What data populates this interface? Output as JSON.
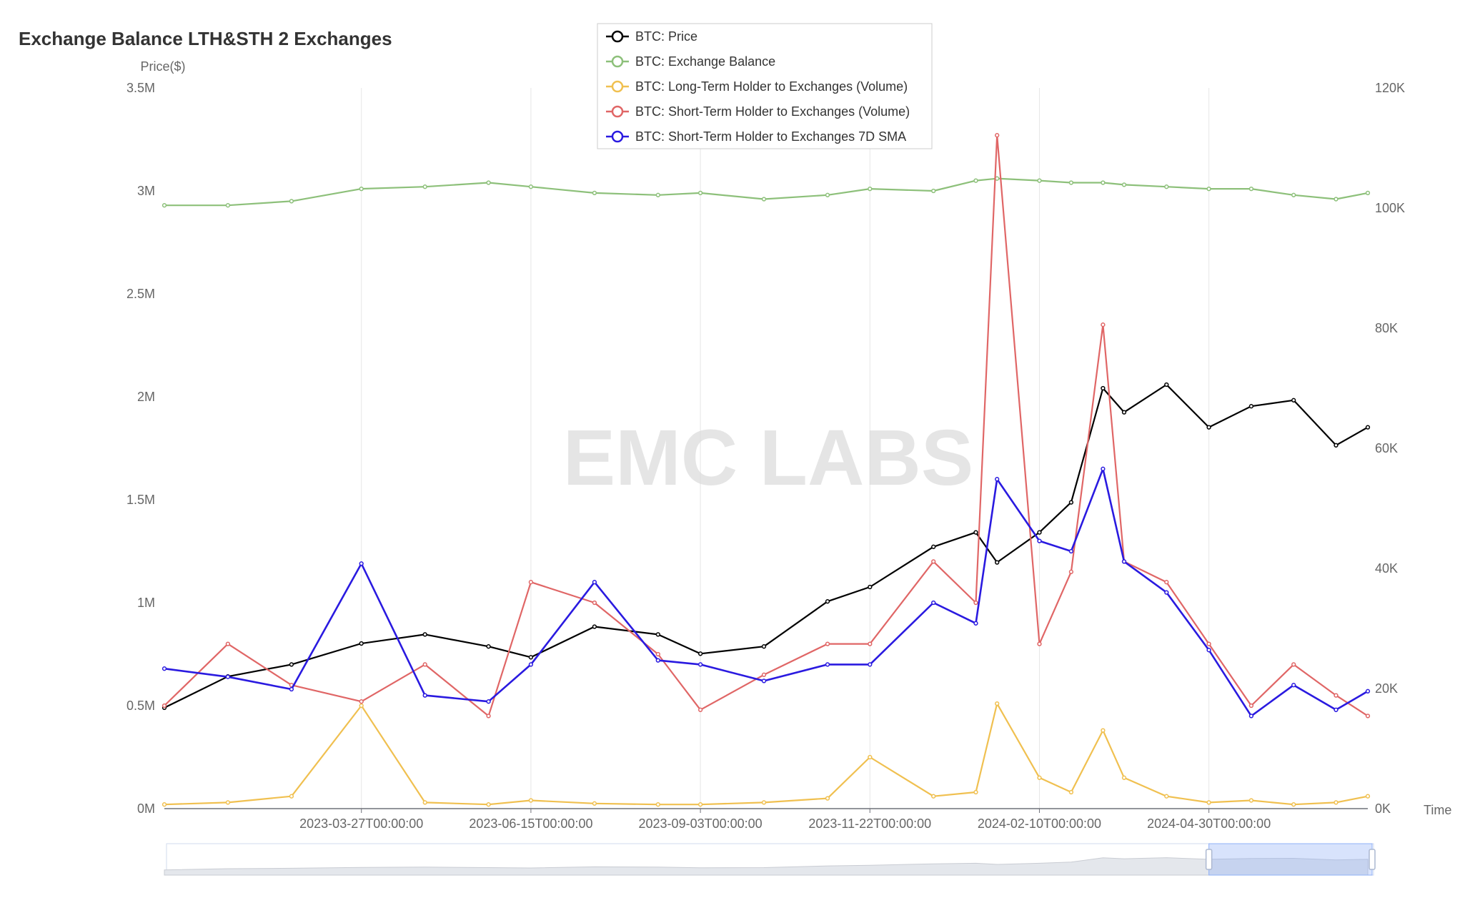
{
  "title": "Exchange Balance LTH&STH 2 Exchanges",
  "watermark": "EMC LABS",
  "chart_data": {
    "type": "line",
    "title": "Exchange Balance LTH&STH 2 Exchanges",
    "xlabel": "Time",
    "ylabel_left": "Price($)",
    "ylabel_right": "",
    "grid": "vertical",
    "legend_position": "top-center",
    "x_tick_labels": [
      "2023-03-27T00:00:00",
      "2023-06-15T00:00:00",
      "2023-09-03T00:00:00",
      "2023-11-22T00:00:00",
      "2024-02-10T00:00:00",
      "2024-04-30T00:00:00"
    ],
    "y_left": {
      "ylim": [
        0,
        3500000
      ],
      "tick_labels": [
        "0M",
        "0.5M",
        "1M",
        "1.5M",
        "2M",
        "2.5M",
        "3M",
        "3.5M"
      ]
    },
    "y_right": {
      "ylim": [
        0,
        120000
      ],
      "tick_labels": [
        "0K",
        "20K",
        "40K",
        "60K",
        "80K",
        "100K",
        "120K"
      ]
    },
    "x_range": [
      "2022-12-24",
      "2024-07-14"
    ],
    "sample_dates": [
      "2022-12-24",
      "2023-01-23",
      "2023-02-22",
      "2023-03-27",
      "2023-04-26",
      "2023-05-26",
      "2023-06-15",
      "2023-07-15",
      "2023-08-14",
      "2023-09-03",
      "2023-10-03",
      "2023-11-02",
      "2023-11-22",
      "2023-12-22",
      "2024-01-11",
      "2024-01-21",
      "2024-02-10",
      "2024-02-25",
      "2024-03-11",
      "2024-03-21",
      "2024-04-10",
      "2024-04-30",
      "2024-05-20",
      "2024-06-09",
      "2024-06-29",
      "2024-07-14"
    ],
    "series": [
      {
        "name": "BTC: Price",
        "axis": "right",
        "color": "#000000",
        "values": [
          16800,
          22000,
          24000,
          27500,
          29000,
          27000,
          25200,
          30300,
          29000,
          25800,
          27000,
          34500,
          36900,
          43600,
          46000,
          41000,
          46000,
          51000,
          70000,
          66000,
          70600,
          63500,
          67000,
          68000,
          60500,
          63500
        ]
      },
      {
        "name": "BTC: Exchange Balance",
        "axis": "left",
        "color": "#8dc07a",
        "values": [
          2930000,
          2930000,
          2950000,
          3010000,
          3020000,
          3040000,
          3020000,
          2990000,
          2980000,
          2990000,
          2960000,
          2980000,
          3010000,
          3000000,
          3050000,
          3060000,
          3050000,
          3040000,
          3040000,
          3030000,
          3020000,
          3010000,
          3010000,
          2980000,
          2960000,
          2990000
        ]
      },
      {
        "name": "BTC: Long-Term Holder to Exchanges (Volume)",
        "axis": "left",
        "color": "#f0c050",
        "values": [
          20000,
          30000,
          60000,
          500000,
          30000,
          20000,
          40000,
          25000,
          20000,
          20000,
          30000,
          50000,
          250000,
          60000,
          80000,
          510000,
          150000,
          80000,
          380000,
          150000,
          60000,
          30000,
          40000,
          20000,
          30000,
          60000
        ]
      },
      {
        "name": "BTC: Short-Term Holder to Exchanges (Volume)",
        "axis": "left",
        "color": "#e06666",
        "values": [
          500000,
          800000,
          600000,
          520000,
          700000,
          450000,
          1100000,
          1000000,
          750000,
          480000,
          650000,
          800000,
          800000,
          1200000,
          1000000,
          3270000,
          800000,
          1150000,
          2350000,
          1200000,
          1100000,
          800000,
          500000,
          700000,
          550000,
          450000
        ]
      },
      {
        "name": "BTC: Short-Term Holder to Exchanges 7D SMA",
        "axis": "left",
        "color": "#2a1ae0",
        "values": [
          680000,
          640000,
          580000,
          1190000,
          550000,
          520000,
          700000,
          1100000,
          720000,
          700000,
          620000,
          700000,
          700000,
          1000000,
          900000,
          1600000,
          1300000,
          1250000,
          1650000,
          1200000,
          1050000,
          770000,
          450000,
          600000,
          480000,
          570000
        ]
      }
    ],
    "datazoom_range": [
      "2024-04-30",
      "2024-07-14"
    ]
  }
}
